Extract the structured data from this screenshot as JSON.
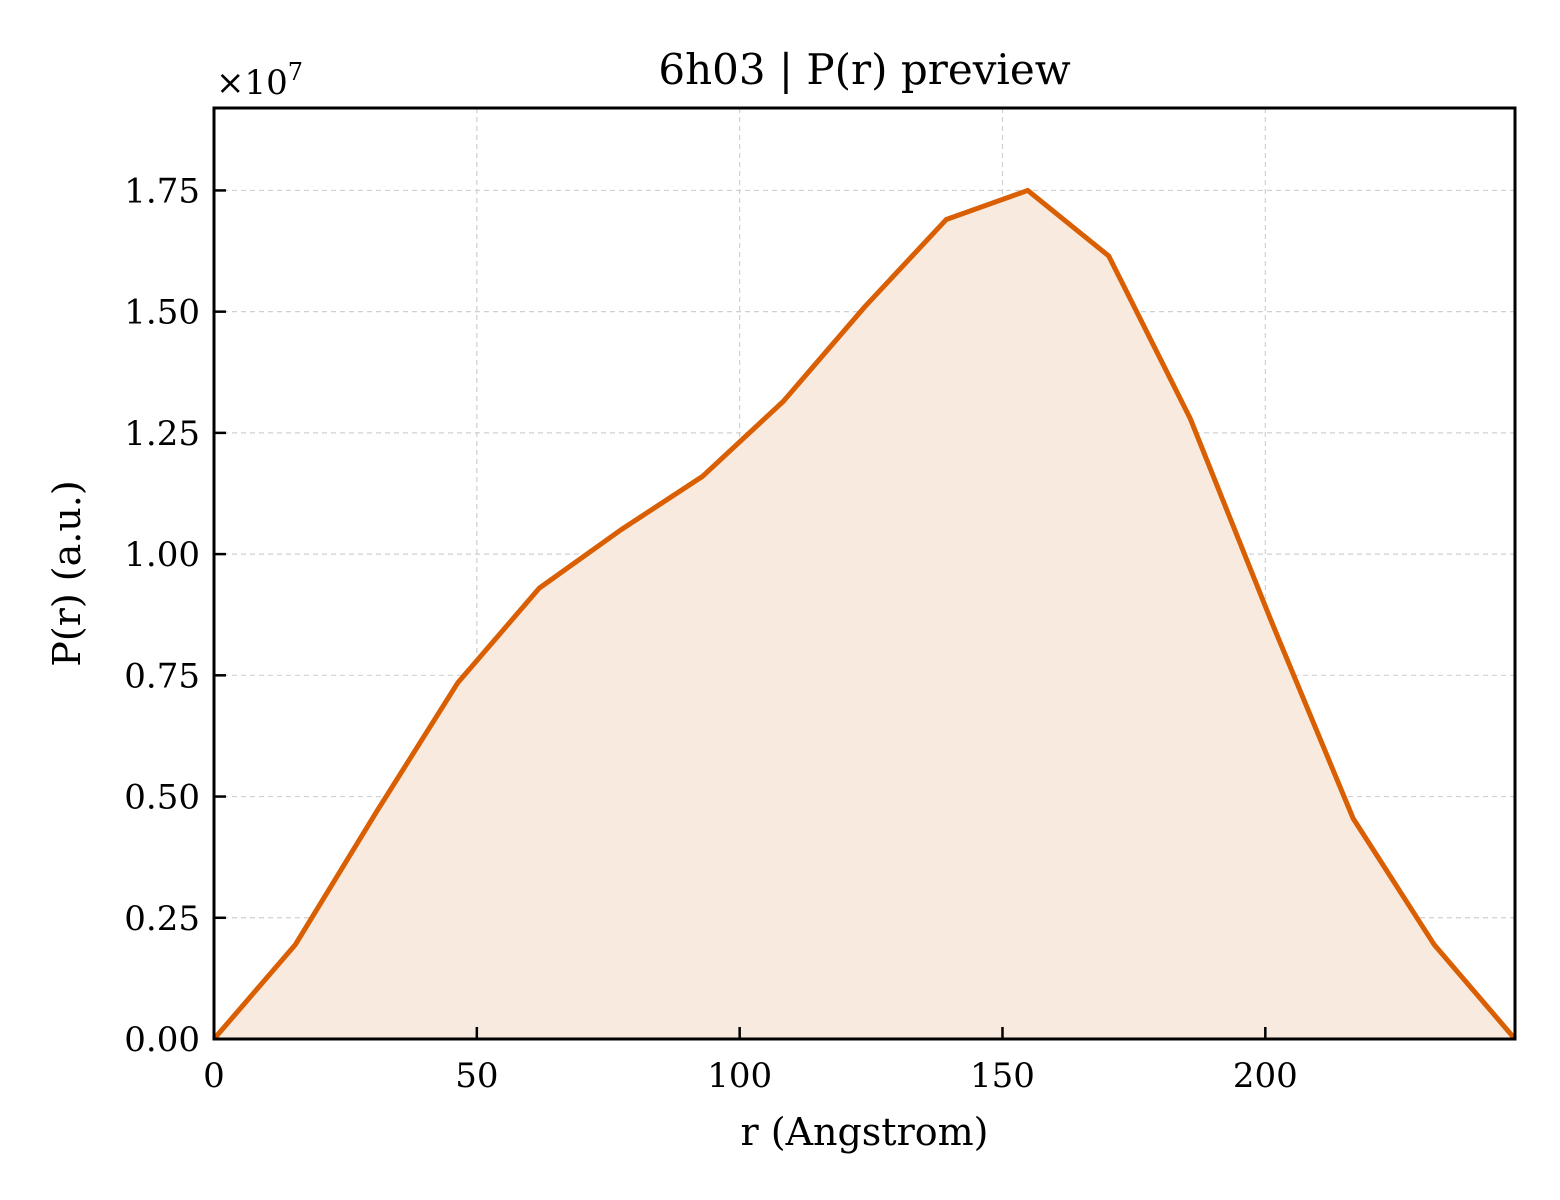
{
  "chart_data": {
    "type": "area",
    "title": "6h03 | P(r) preview",
    "xlabel": "r (Angstrom)",
    "ylabel": "P(r) (a.u.)",
    "y_scale_multiplier_label": "×10",
    "y_scale_multiplier_exponent": "7",
    "xlim": [
      0,
      247.5
    ],
    "ylim": [
      0,
      19200000
    ],
    "xticks": [
      0,
      50,
      100,
      150,
      200
    ],
    "xtick_labels": [
      "0",
      "50",
      "100",
      "150",
      "200"
    ],
    "yticks": [
      0,
      2500000,
      5000000,
      7500000,
      10000000,
      12500000,
      15000000,
      17500000
    ],
    "ytick_labels": [
      "0.00",
      "0.25",
      "0.50",
      "0.75",
      "1.00",
      "1.25",
      "1.50",
      "1.75"
    ],
    "grid": true,
    "series": [
      {
        "x": [
          0,
          15.5,
          31,
          46.4,
          61.9,
          77.4,
          92.9,
          108.3,
          123.8,
          139.3,
          154.8,
          170.2,
          185.7,
          201.2,
          216.7,
          232.1,
          247.5
        ],
        "values": [
          0,
          1950000,
          4700000,
          7350000,
          9300000,
          10500000,
          11600000,
          13150000,
          15100000,
          16900000,
          17500000,
          16150000,
          12800000,
          8600000,
          4550000,
          1950000,
          0
        ]
      }
    ],
    "colors": {
      "line": "#d95f02",
      "fill": "#f8eadf",
      "grid": "#d0d0d0"
    }
  }
}
